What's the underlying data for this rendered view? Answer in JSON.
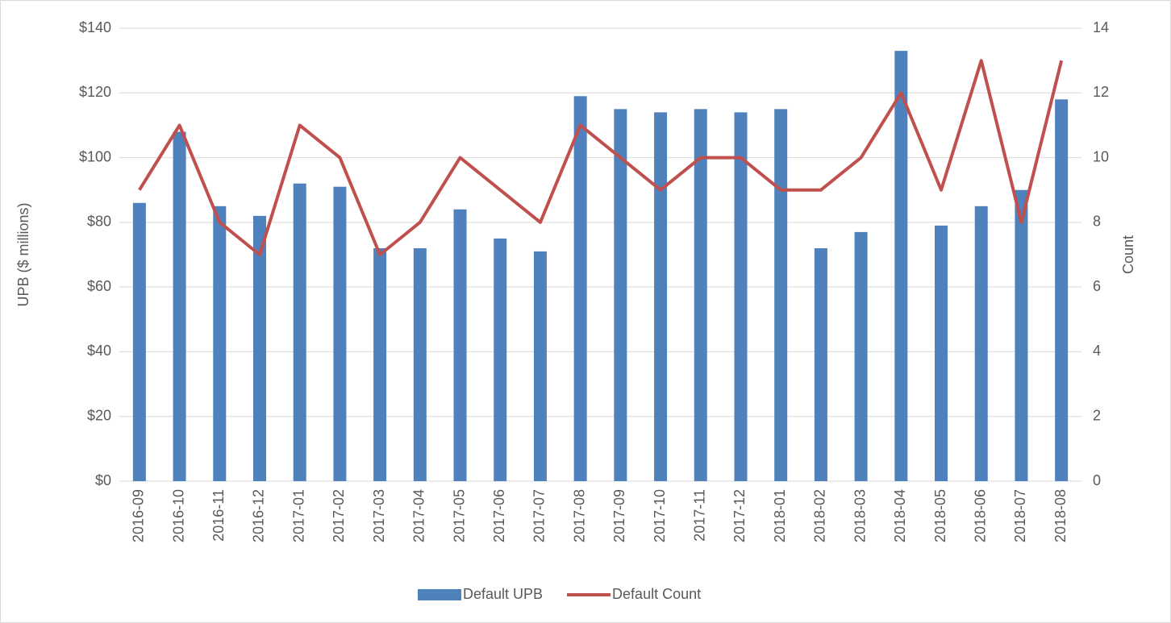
{
  "chart_data": {
    "type": "bar",
    "categories": [
      "2016-09",
      "2016-10",
      "2016-11",
      "2016-12",
      "2017-01",
      "2017-02",
      "2017-03",
      "2017-04",
      "2017-05",
      "2017-06",
      "2017-07",
      "2017-08",
      "2017-09",
      "2017-10",
      "2017-11",
      "2017-12",
      "2018-01",
      "2018-02",
      "2018-03",
      "2018-04",
      "2018-05",
      "2018-06",
      "2018-07",
      "2018-08"
    ],
    "series": [
      {
        "name": "Default UPB",
        "type": "bar",
        "color": "#4f81bd",
        "values": [
          86,
          108,
          85,
          82,
          92,
          91,
          72,
          72,
          84,
          75,
          71,
          119,
          115,
          114,
          115,
          114,
          115,
          72,
          77,
          133,
          79,
          85,
          90,
          118
        ]
      },
      {
        "name": "Default Count",
        "type": "line",
        "axis": "y2",
        "color": "#c0504d",
        "values": [
          9,
          11,
          8,
          7,
          11,
          10,
          7,
          8,
          10,
          9,
          8,
          11,
          10,
          9,
          10,
          10,
          9,
          9,
          10,
          12,
          9,
          13,
          8,
          13
        ]
      }
    ],
    "y_label": "UPB ($ millions)",
    "y2_label": "Count",
    "ylim": [
      0,
      140
    ],
    "yticks": [
      {
        "value": 0,
        "label": "$0"
      },
      {
        "value": 20,
        "label": "$20"
      },
      {
        "value": 40,
        "label": "$40"
      },
      {
        "value": 60,
        "label": "$60"
      },
      {
        "value": 80,
        "label": "$80"
      },
      {
        "value": 100,
        "label": "$100"
      },
      {
        "value": 120,
        "label": "$120"
      },
      {
        "value": 140,
        "label": "$140"
      }
    ],
    "y2lim": [
      0,
      14
    ],
    "y2ticks": [
      0,
      2,
      4,
      6,
      8,
      10,
      12,
      14
    ],
    "grid": true,
    "legend": "bottom"
  }
}
